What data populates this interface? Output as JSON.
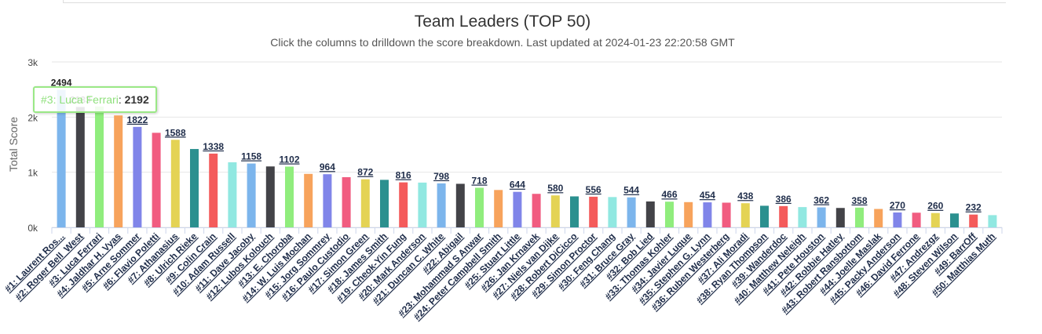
{
  "chart_data": {
    "type": "bar",
    "title": "Team Leaders (TOP 50)",
    "subtitle": "Click the columns to drilldown the score breakdown. Last updated at 2024-01-23 22:20:58 GMT",
    "ylabel": "Total Score",
    "xlabel": "",
    "ylim": [
      0,
      3000
    ],
    "yticks": [
      {
        "value": 0,
        "label": "0k"
      },
      {
        "value": 1000,
        "label": "1k"
      },
      {
        "value": 2000,
        "label": "2k"
      },
      {
        "value": 3000,
        "label": "3k"
      }
    ],
    "grid": true,
    "legend": "none",
    "categories": [
      "#1: Laurent Ros...",
      "#2: Roger Bell_West",
      "#3: Luca Ferrari",
      "#4: Jaldhar H. Vyas",
      "#5: Arne Sommer",
      "#6: Flavio Poletti",
      "#7: Athanasius",
      "#8: Ulrich Rieke",
      "#9: Colin Crain",
      "#10: Adam Russell",
      "#11: Dave Jacoby",
      "#12: Lubos Kolouch",
      "#13: E. Choroba",
      "#14: W. Luis Mochan",
      "#15: Jorg Sommrey",
      "#16: Paulo Custodio",
      "#17: Simon Green",
      "#18: James Smith",
      "#19: Cheok-Yin Fung",
      "#20: Mark Anderson",
      "#21: Duncan C. White",
      "#22: Abigail",
      "#23: Mohammad S Anwar",
      "#24: Peter Campbell Smith",
      "#25: Stuart Little",
      "#26: Jan Krnavek",
      "#27: Niels van Dijke",
      "#28: Robert DiCicco",
      "#29: Simon Proctor",
      "#30: Feng Chang",
      "#31: Bruce Gray",
      "#32: Bob Lied",
      "#33: Thomas Kohler",
      "#34: Javier Luque",
      "#35: Stephen G. Lynn",
      "#36: Ruben Westerberg",
      "#37: Ali Moradi",
      "#38: Ryan Thompson",
      "#39: Wanderdoc",
      "#40: Matthew Neleigh",
      "#41: Pete Houston",
      "#42: Robbie Hatley",
      "#43: Robert Ransbottom",
      "#44: Joelle Maslak",
      "#45: Packy Anderson",
      "#46: David Ferrone",
      "#47: Andrezgz",
      "#48: Steven Wilson",
      "#49: BarrOff",
      "#50: Matthias Muth"
    ],
    "values": [
      2494,
      2183,
      2192,
      2030,
      1822,
      1715,
      1588,
      1421,
      1338,
      1180,
      1158,
      1105,
      1102,
      970,
      964,
      910,
      872,
      862,
      816,
      812,
      798,
      790,
      718,
      678,
      644,
      608,
      580,
      562,
      556,
      550,
      544,
      470,
      466,
      458,
      454,
      448,
      438,
      392,
      386,
      368,
      362,
      352,
      358,
      334,
      270,
      266,
      260,
      252,
      232,
      222
    ],
    "visible_labels": [
      {
        "index": 0,
        "text": "2494"
      },
      {
        "index": 1,
        "text": "2183"
      },
      {
        "index": 4,
        "text": "1822"
      },
      {
        "index": 6,
        "text": "1588"
      },
      {
        "index": 8,
        "text": "1338"
      },
      {
        "index": 10,
        "text": "1158"
      },
      {
        "index": 12,
        "text": "1102"
      },
      {
        "index": 14,
        "text": "964"
      },
      {
        "index": 16,
        "text": "872"
      },
      {
        "index": 18,
        "text": "816"
      },
      {
        "index": 20,
        "text": "798"
      },
      {
        "index": 22,
        "text": "718"
      },
      {
        "index": 24,
        "text": "644"
      },
      {
        "index": 26,
        "text": "580"
      },
      {
        "index": 28,
        "text": "556"
      },
      {
        "index": 30,
        "text": "544"
      },
      {
        "index": 32,
        "text": "466"
      },
      {
        "index": 34,
        "text": "454"
      },
      {
        "index": 36,
        "text": "438"
      },
      {
        "index": 38,
        "text": "386"
      },
      {
        "index": 40,
        "text": "362"
      },
      {
        "index": 42,
        "text": "358"
      },
      {
        "index": 44,
        "text": "270"
      },
      {
        "index": 46,
        "text": "260"
      },
      {
        "index": 48,
        "text": "232"
      }
    ],
    "colors": [
      "#7cb5ec",
      "#434348",
      "#90ed7d",
      "#f7a35c",
      "#8085e9",
      "#f15c80",
      "#e4d354",
      "#2b908f",
      "#f45b5b",
      "#91e8e1"
    ],
    "tooltip": {
      "index": 2,
      "name": "#3: Luca Ferrari",
      "value": "2192"
    }
  }
}
